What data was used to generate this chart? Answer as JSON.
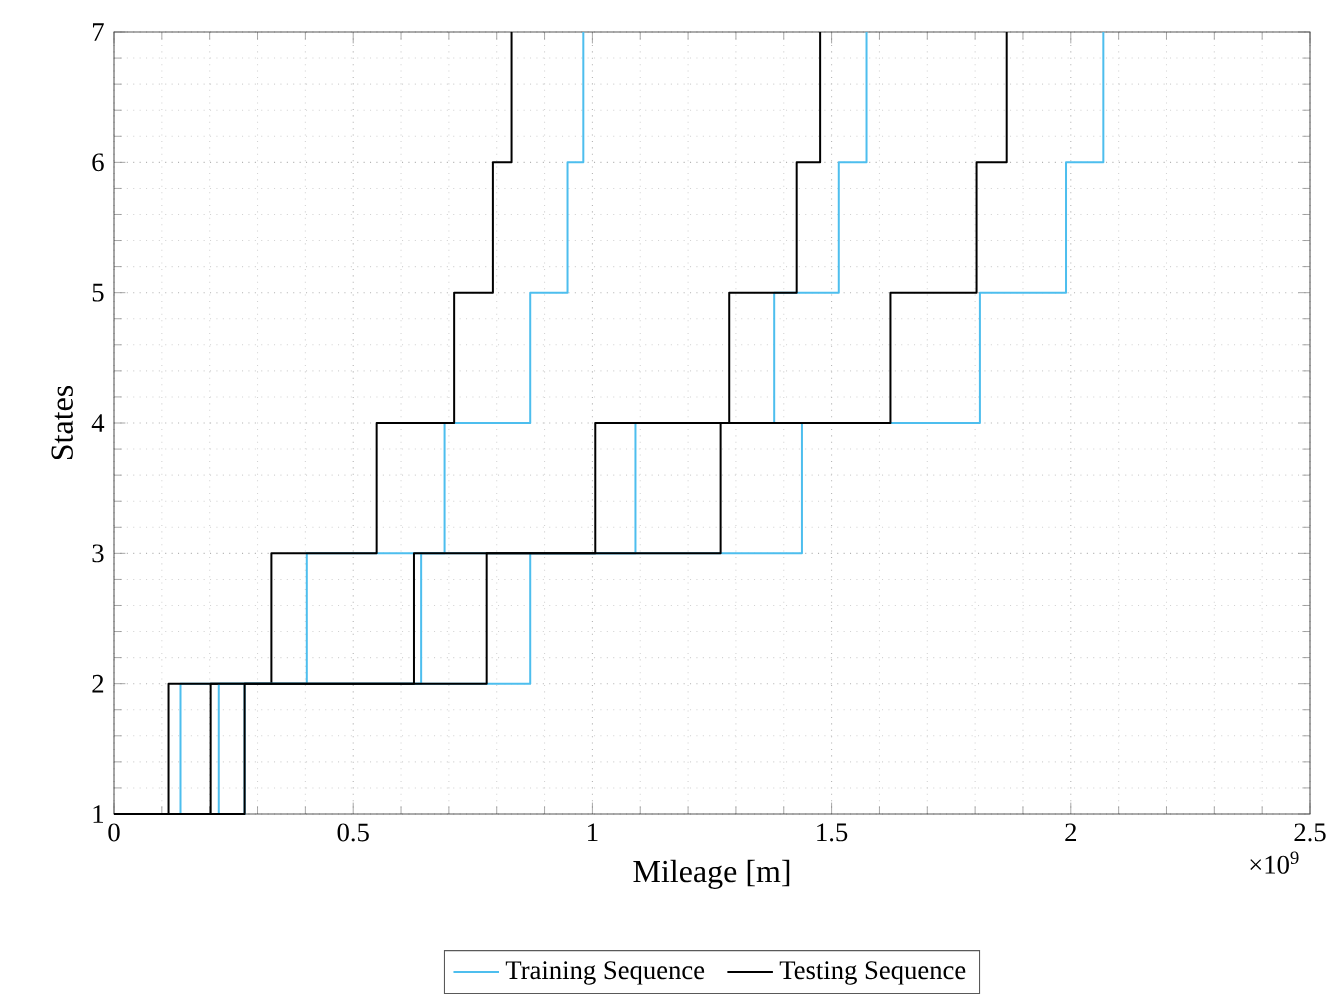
{
  "chart_data": {
    "type": "step",
    "xlabel": "Mileage [m]",
    "ylabel": "States",
    "xlim": [
      0,
      2.5
    ],
    "ylim": [
      1,
      7
    ],
    "xticks": [
      0,
      0.5,
      1,
      1.5,
      2,
      2.5
    ],
    "yticks": [
      1,
      2,
      3,
      4,
      5,
      6,
      7
    ],
    "grid": true,
    "legend": "bottom",
    "annotations": [
      "×10$^{9}$"
    ],
    "series": [
      {
        "name": "Training Sequence",
        "color": "#4dbeee",
        "x": [
          0,
          0.139,
          0.403,
          0.691,
          0.87,
          0.948,
          0.981
        ],
        "values": [
          1,
          2,
          3,
          4,
          5,
          6,
          7
        ]
      },
      {
        "name": "Testing Sequence",
        "color": "#000000",
        "x": [
          0,
          0.114,
          0.329,
          0.549,
          0.711,
          0.792,
          0.831
        ],
        "values": [
          1,
          2,
          3,
          4,
          5,
          6,
          7
        ]
      },
      {
        "color": "#4dbeee",
        "x": [
          0,
          0.219,
          0.642,
          1.09,
          1.38,
          1.515,
          1.573
        ],
        "values": [
          1,
          2,
          3,
          4,
          5,
          6,
          7
        ]
      },
      {
        "color": "#4dbeee",
        "x": [
          0,
          0.273,
          0.87,
          1.438,
          1.81,
          1.99,
          2.068
        ],
        "values": [
          1,
          2,
          3,
          4,
          5,
          6,
          7
        ]
      },
      {
        "color": "#000000",
        "x": [
          0,
          0.202,
          0.627,
          1.006,
          1.286,
          1.427,
          1.476
        ],
        "values": [
          1,
          2,
          3,
          4,
          5,
          6,
          7
        ]
      },
      {
        "color": "#000000",
        "x": [
          0,
          0.273,
          0.779,
          1.268,
          1.623,
          1.803,
          1.866
        ],
        "values": [
          1,
          2,
          3,
          4,
          5,
          6,
          7
        ]
      }
    ]
  }
}
